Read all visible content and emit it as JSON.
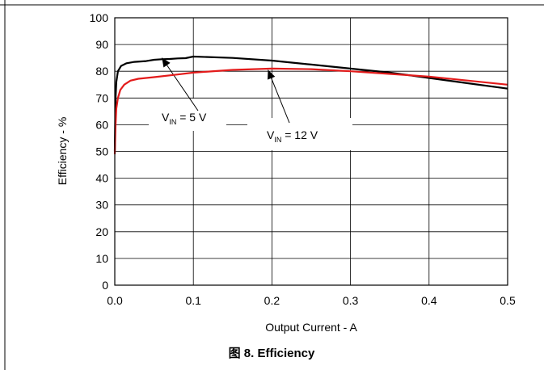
{
  "caption": "图 8. Efficiency",
  "chart_data": {
    "type": "line",
    "title": "",
    "xlabel": "Output Current - A",
    "ylabel": "Efficiency - %",
    "xlim": [
      0,
      0.5
    ],
    "ylim": [
      0,
      100
    ],
    "x_ticks": [
      "0.0",
      "0.1",
      "0.2",
      "0.3",
      "0.4",
      "0.5"
    ],
    "y_ticks": [
      "0",
      "10",
      "20",
      "30",
      "40",
      "50",
      "60",
      "70",
      "80",
      "90",
      "100"
    ],
    "grid": true,
    "legend": "none",
    "series": [
      {
        "color": "#000000",
        "points": [
          [
            0.0,
            50
          ],
          [
            0.001,
            70
          ],
          [
            0.002,
            76
          ],
          [
            0.004,
            80
          ],
          [
            0.008,
            82
          ],
          [
            0.015,
            83
          ],
          [
            0.025,
            83.5
          ],
          [
            0.04,
            83.8
          ],
          [
            0.05,
            84.3
          ],
          [
            0.06,
            84.5
          ],
          [
            0.07,
            84.6
          ],
          [
            0.08,
            84.8
          ],
          [
            0.09,
            84.9
          ],
          [
            0.1,
            85.5
          ],
          [
            0.15,
            85.0
          ],
          [
            0.2,
            84.0
          ],
          [
            0.25,
            82.5
          ],
          [
            0.3,
            81.0
          ],
          [
            0.35,
            79.5
          ],
          [
            0.4,
            77.5
          ],
          [
            0.45,
            75.5
          ],
          [
            0.5,
            73.5
          ]
        ]
      },
      {
        "color": "#e31b1b",
        "points": [
          [
            0.0,
            49
          ],
          [
            0.001,
            60
          ],
          [
            0.002,
            66
          ],
          [
            0.004,
            70
          ],
          [
            0.007,
            73
          ],
          [
            0.012,
            75
          ],
          [
            0.02,
            76.5
          ],
          [
            0.03,
            77.2
          ],
          [
            0.05,
            77.8
          ],
          [
            0.08,
            78.8
          ],
          [
            0.1,
            79.5
          ],
          [
            0.15,
            80.5
          ],
          [
            0.2,
            81.0
          ],
          [
            0.25,
            80.8
          ],
          [
            0.3,
            80.0
          ],
          [
            0.35,
            79.0
          ],
          [
            0.4,
            78.0
          ],
          [
            0.45,
            76.5
          ],
          [
            0.5,
            75.0
          ]
        ]
      }
    ],
    "annotations": [
      {
        "main": "V",
        "sub": "IN",
        "rest": " = 5 V",
        "points_to": [
          0.06,
          85
        ]
      },
      {
        "main": "V",
        "sub": "IN",
        "rest": " = 12 V",
        "points_to": [
          0.195,
          80.5
        ]
      }
    ]
  }
}
